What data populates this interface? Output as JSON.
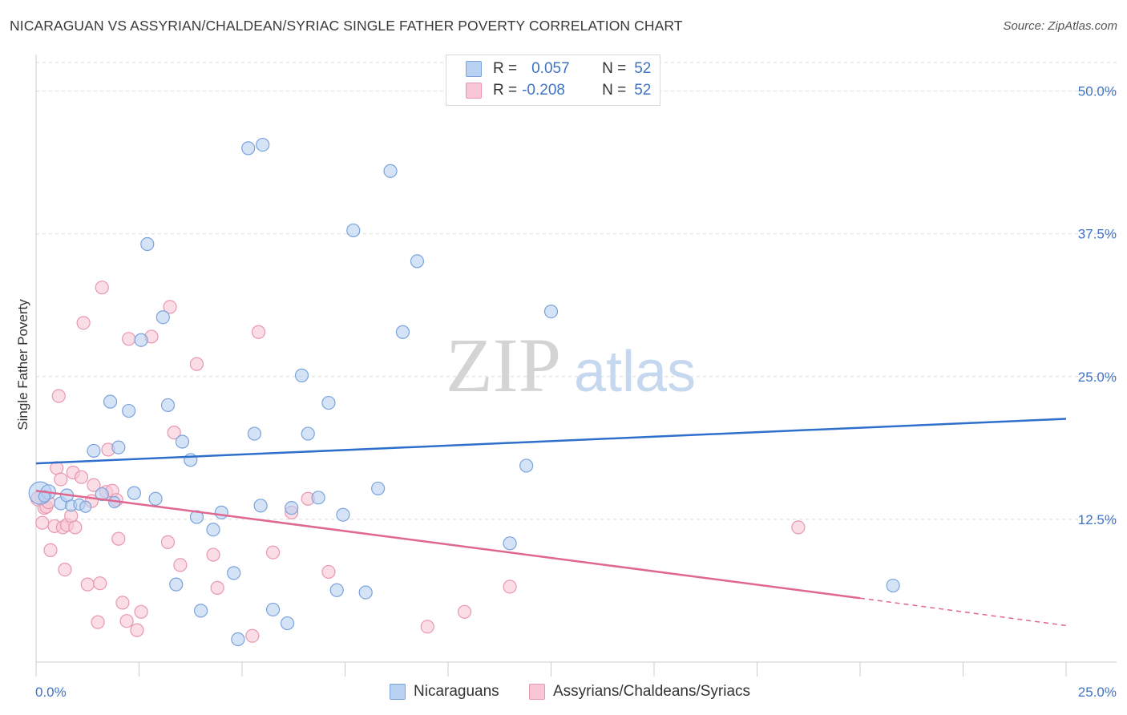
{
  "header": {
    "title": "NICARAGUAN VS ASSYRIAN/CHALDEAN/SYRIAC SINGLE FATHER POVERTY CORRELATION CHART",
    "source": "Source: ZipAtlas.com"
  },
  "watermark": {
    "zip": "ZIP",
    "atlas": "atlas"
  },
  "colors": {
    "blue_fill": "#b9d1f2",
    "blue_stroke": "#7aa3dc",
    "blue_line": "#2e6fcc",
    "pink_fill": "#f8c6d5",
    "pink_stroke": "#e897b0",
    "pink_line": "#e0678f",
    "tick_label": "#3f73c6",
    "grid": "#d9d9d9"
  },
  "legend": {
    "series": [
      {
        "r_label": "R =",
        "r_value": "0.057",
        "n_label": "N =",
        "n_value": "52"
      },
      {
        "r_label": "R =",
        "r_value": "-0.208",
        "n_label": "N =",
        "n_value": "52"
      }
    ]
  },
  "bottom_legend": {
    "blue": "Nicaraguans",
    "pink": "Assyrians/Chaldeans/Syriacs"
  },
  "chart_data": {
    "type": "scatter",
    "title": "NICARAGUAN VS ASSYRIAN/CHALDEAN/SYRIAC SINGLE FATHER POVERTY CORRELATION CHART",
    "xlabel": "",
    "ylabel": "Single Father Poverty",
    "xlim": [
      0,
      25
    ],
    "ylim": [
      0,
      52.5
    ],
    "y_ticks": [
      12.5,
      25.0,
      37.5,
      50.0
    ],
    "y_tick_labels": [
      "12.5%",
      "25.0%",
      "37.5%",
      "50.0%"
    ],
    "x_tick_labels": [
      "0.0%",
      "25.0%"
    ],
    "grid": true,
    "series": [
      {
        "name": "Nicaraguans",
        "r": 0.057,
        "n": 52,
        "trend": {
          "x": [
            0,
            25
          ],
          "y": [
            17.4,
            21.3
          ]
        },
        "points": [
          [
            0.1,
            14.8,
            14
          ],
          [
            0.3,
            14.9,
            9
          ],
          [
            0.6,
            13.9,
            8
          ],
          [
            0.75,
            14.6,
            8
          ],
          [
            0.85,
            13.7,
            7
          ],
          [
            1.05,
            13.8,
            7
          ],
          [
            1.2,
            13.6,
            7
          ],
          [
            1.4,
            18.5,
            8
          ],
          [
            1.6,
            14.7,
            8
          ],
          [
            1.8,
            22.8,
            8
          ],
          [
            1.9,
            14.0,
            7
          ],
          [
            2.0,
            18.8,
            8
          ],
          [
            2.25,
            22.0,
            8
          ],
          [
            2.38,
            14.8,
            8
          ],
          [
            2.55,
            28.2,
            8
          ],
          [
            2.7,
            36.6,
            8
          ],
          [
            2.9,
            14.3,
            8
          ],
          [
            3.08,
            30.2,
            8
          ],
          [
            3.2,
            22.5,
            8
          ],
          [
            3.4,
            6.8,
            8
          ],
          [
            3.55,
            19.3,
            8
          ],
          [
            3.75,
            17.7,
            8
          ],
          [
            3.9,
            12.7,
            8
          ],
          [
            4.0,
            4.5,
            8
          ],
          [
            4.3,
            11.6,
            8
          ],
          [
            4.5,
            13.1,
            8
          ],
          [
            4.8,
            7.8,
            8
          ],
          [
            4.9,
            2.0,
            8
          ],
          [
            5.15,
            45.0,
            8
          ],
          [
            5.3,
            20.0,
            8
          ],
          [
            5.45,
            13.7,
            8
          ],
          [
            5.5,
            45.3,
            8
          ],
          [
            5.75,
            4.6,
            8
          ],
          [
            6.1,
            3.4,
            8
          ],
          [
            6.2,
            13.5,
            8
          ],
          [
            6.45,
            25.1,
            8
          ],
          [
            6.6,
            20.0,
            8
          ],
          [
            6.85,
            14.4,
            8
          ],
          [
            7.1,
            22.7,
            8
          ],
          [
            7.3,
            6.3,
            8
          ],
          [
            7.45,
            12.9,
            8
          ],
          [
            7.7,
            37.8,
            8
          ],
          [
            8.0,
            6.1,
            8
          ],
          [
            8.3,
            15.2,
            8
          ],
          [
            8.6,
            43.0,
            8
          ],
          [
            8.9,
            28.9,
            8
          ],
          [
            9.25,
            35.1,
            8
          ],
          [
            11.5,
            10.4,
            8
          ],
          [
            11.9,
            17.2,
            8
          ],
          [
            12.5,
            30.7,
            8
          ],
          [
            20.8,
            6.7,
            8
          ],
          [
            0.2,
            14.5,
            7
          ]
        ]
      },
      {
        "name": "Assyrians/Chaldeans/Syriacs",
        "r": -0.208,
        "n": 52,
        "trend": {
          "x": [
            0,
            20
          ],
          "y": [
            15.0,
            5.6
          ]
        },
        "trend_dashed": {
          "x": [
            20,
            25
          ],
          "y": [
            5.6,
            3.2
          ]
        },
        "points": [
          [
            0.05,
            14.3,
            9
          ],
          [
            0.15,
            12.2,
            8
          ],
          [
            0.2,
            13.5,
            8
          ],
          [
            0.25,
            13.6,
            8
          ],
          [
            0.3,
            14.0,
            8
          ],
          [
            0.35,
            9.8,
            8
          ],
          [
            0.45,
            11.9,
            8
          ],
          [
            0.5,
            17.0,
            8
          ],
          [
            0.55,
            23.3,
            8
          ],
          [
            0.6,
            16.0,
            8
          ],
          [
            0.65,
            11.8,
            8
          ],
          [
            0.7,
            8.1,
            8
          ],
          [
            0.75,
            12.0,
            8
          ],
          [
            0.85,
            12.8,
            8
          ],
          [
            0.9,
            16.6,
            8
          ],
          [
            0.95,
            11.8,
            8
          ],
          [
            1.1,
            16.2,
            8
          ],
          [
            1.15,
            29.7,
            8
          ],
          [
            1.25,
            6.8,
            8
          ],
          [
            1.35,
            14.1,
            8
          ],
          [
            1.4,
            15.5,
            8
          ],
          [
            1.5,
            3.5,
            8
          ],
          [
            1.55,
            6.9,
            8
          ],
          [
            1.6,
            32.8,
            8
          ],
          [
            1.7,
            14.9,
            8
          ],
          [
            1.75,
            18.6,
            8
          ],
          [
            1.85,
            15.0,
            8
          ],
          [
            1.95,
            14.2,
            8
          ],
          [
            2.0,
            10.8,
            8
          ],
          [
            2.1,
            5.2,
            8
          ],
          [
            2.2,
            3.6,
            8
          ],
          [
            2.25,
            28.3,
            8
          ],
          [
            2.45,
            2.8,
            8
          ],
          [
            2.55,
            4.4,
            8
          ],
          [
            2.8,
            28.5,
            8
          ],
          [
            3.2,
            10.5,
            8
          ],
          [
            3.25,
            31.1,
            8
          ],
          [
            3.35,
            20.1,
            8
          ],
          [
            3.5,
            8.5,
            8
          ],
          [
            3.9,
            26.1,
            8
          ],
          [
            4.3,
            9.4,
            8
          ],
          [
            4.4,
            6.5,
            8
          ],
          [
            5.25,
            2.3,
            8
          ],
          [
            5.4,
            28.9,
            8
          ],
          [
            5.75,
            9.6,
            8
          ],
          [
            6.2,
            13.1,
            8
          ],
          [
            6.6,
            14.3,
            8
          ],
          [
            7.1,
            7.9,
            8
          ],
          [
            9.5,
            3.1,
            8
          ],
          [
            10.4,
            4.4,
            8
          ],
          [
            11.5,
            6.6,
            8
          ],
          [
            18.5,
            11.8,
            8
          ]
        ]
      }
    ]
  }
}
